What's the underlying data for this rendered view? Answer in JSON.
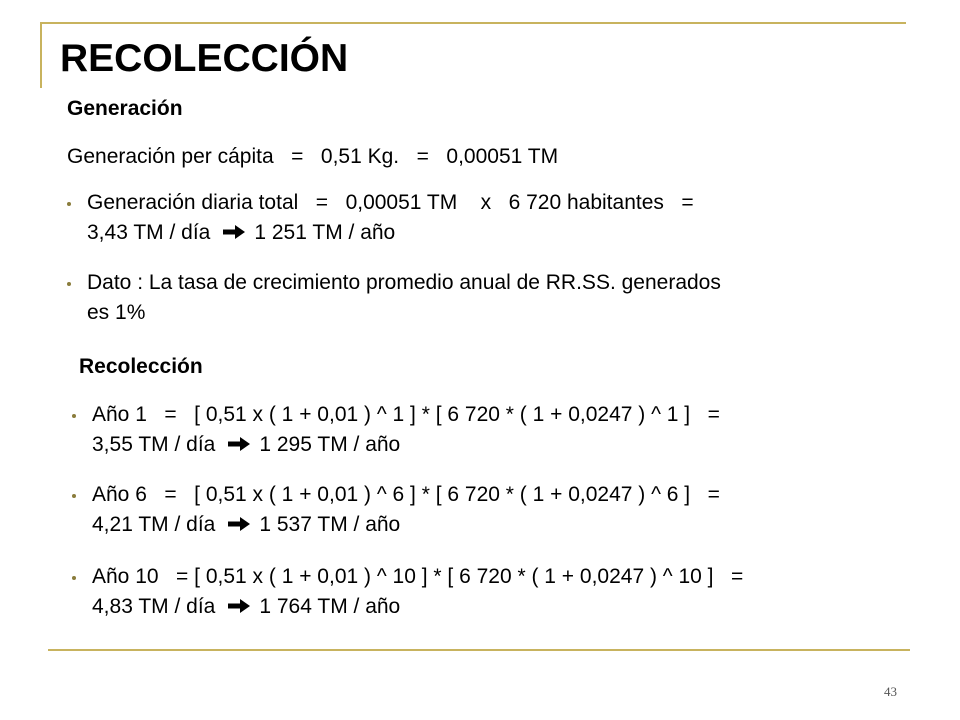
{
  "slide": {
    "title": "RECOLECCIÓN",
    "page_number": "43",
    "accent_color": "#c8b35e"
  },
  "generacion": {
    "heading": "Generación",
    "per_capita": "Generación per cápita   =   0,51 Kg.   =   0,00051 TM",
    "items": [
      {
        "line1": "Generación diaria total   =   0,00051 TM    x   6 720 habitantes   =",
        "line2_a": "3,43 TM / día",
        "line2_b": "1 251 TM / año"
      },
      {
        "line1": "Dato : La tasa de crecimiento promedio anual de RR.SS. generados",
        "line2": "es 1%"
      }
    ]
  },
  "recoleccion": {
    "heading": "Recolección",
    "items": [
      {
        "line1": "Año 1   =   [ 0,51 x ( 1 + 0,01 ) ^ 1 ] * [ 6 720 * ( 1 + 0,0247 ) ^ 1 ]   =",
        "line2_a": "3,55 TM / día",
        "line2_b": "1 295 TM / año"
      },
      {
        "line1": "Año 6   =   [ 0,51 x ( 1 + 0,01 ) ^ 6 ] * [ 6 720 * ( 1 + 0,0247 ) ^ 6 ]   =",
        "line2_a": "4,21 TM / día",
        "line2_b": "1 537 TM / año"
      },
      {
        "line1": "Año 10   = [ 0,51 x ( 1 + 0,01 ) ^ 10 ] * [ 6 720 * ( 1 + 0,0247 ) ^ 10 ]   =",
        "line2_a": "4,83 TM / día",
        "line2_b": "1 764 TM / año"
      }
    ]
  }
}
